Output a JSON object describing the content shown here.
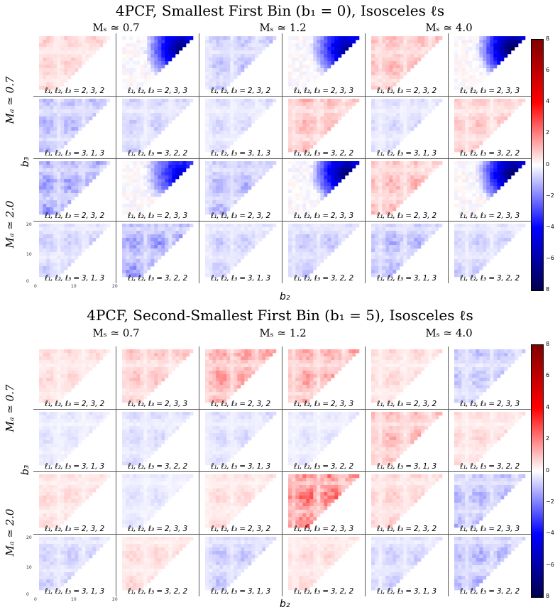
{
  "figures": [
    {
      "title": "4PCF, Smallest First Bin (b₁ = 0), Isosceles ℓs",
      "ms_labels": [
        "Mₛ ≃ 0.7",
        "Mₛ ≃ 1.2",
        "Mₛ ≃ 4.0"
      ],
      "ma_labels": [
        "Mₐ ≃ 0.7",
        "Mₐ ≃ 2.0"
      ],
      "xlabel": "b₂",
      "ylabel": "b₃",
      "panel_labels": [
        [
          "ℓ₁, ℓ₂, ℓ₃ = 2, 3, 2",
          "ℓ₁, ℓ₂, ℓ₃ = 2, 3, 3",
          "ℓ₁, ℓ₂, ℓ₃ = 2, 3, 2",
          "ℓ₁, ℓ₂, ℓ₃ = 2, 3, 3",
          "ℓ₁, ℓ₂, ℓ₃ = 2, 3, 2",
          "ℓ₁, ℓ₂, ℓ₃ = 2, 3, 3"
        ],
        [
          "ℓ₁, ℓ₂, ℓ₃ = 3, 1, 3",
          "ℓ₁, ℓ₂, ℓ₃ = 3, 2, 2",
          "ℓ₁, ℓ₂, ℓ₃ = 3, 1, 3",
          "ℓ₁, ℓ₂, ℓ₃ = 3, 2, 2",
          "ℓ₁, ℓ₂, ℓ₃ = 3, 1, 3",
          "ℓ₁, ℓ₂, ℓ₃ = 3, 2, 2"
        ],
        [
          "ℓ₁, ℓ₂, ℓ₃ = 2, 3, 2",
          "ℓ₁, ℓ₂, ℓ₃ = 2, 3, 3",
          "ℓ₁, ℓ₂, ℓ₃ = 2, 3, 2",
          "ℓ₁, ℓ₂, ℓ₃ = 2, 3, 3",
          "ℓ₁, ℓ₂, ℓ₃ = 2, 3, 2",
          "ℓ₁, ℓ₂, ℓ₃ = 2, 3, 3"
        ],
        [
          "ℓ₁, ℓ₂, ℓ₃ = 3, 1, 3",
          "ℓ₁, ℓ₂, ℓ₃ = 3, 2, 2",
          "ℓ₁, ℓ₂, ℓ₃ = 3, 1, 3",
          "ℓ₁, ℓ₂, ℓ₃ = 3, 2, 2",
          "ℓ₁, ℓ₂, ℓ₃ = 3, 1, 3",
          "ℓ₁, ℓ₂, ℓ₃ = 3, 2, 2"
        ]
      ],
      "axis_ticks": {
        "y": [
          "20",
          "10",
          "0"
        ],
        "x": [
          "0",
          "10",
          "20"
        ]
      },
      "colorbar_ticks": [
        "8",
        "6",
        "4",
        "2",
        "0",
        "−2",
        "−4",
        "−6",
        "8"
      ]
    },
    {
      "title": "4PCF, Second-Smallest First Bin (b₁ = 5), Isosceles ℓs",
      "ms_labels": [
        "Mₛ ≃ 0.7",
        "Mₛ ≃ 1.2",
        "Mₛ ≃ 4.0"
      ],
      "ma_labels": [
        "Mₐ ≃ 0.7",
        "Mₐ ≃ 2.0"
      ],
      "xlabel": "b₂",
      "ylabel": "b₃",
      "panel_labels": [
        [
          "ℓ₁, ℓ₂, ℓ₃ = 2, 3, 2",
          "ℓ₁, ℓ₂, ℓ₃ = 2, 3, 3",
          "ℓ₁, ℓ₂, ℓ₃ = 2, 3, 2",
          "ℓ₁, ℓ₂, ℓ₃ = 2, 3, 3",
          "ℓ₁, ℓ₂, ℓ₃ = 2, 3, 2",
          "ℓ₁, ℓ₂, ℓ₃ = 2, 3, 3"
        ],
        [
          "ℓ₁, ℓ₂, ℓ₃ = 3, 1, 3",
          "ℓ₁, ℓ₂, ℓ₃ = 3, 2, 2",
          "ℓ₁, ℓ₂, ℓ₃ = 3, 1, 3",
          "ℓ₁, ℓ₂, ℓ₃ = 3, 2, 2",
          "ℓ₁, ℓ₂, ℓ₃ = 3, 1, 3",
          "ℓ₁, ℓ₂, ℓ₃ = 3, 2, 2"
        ],
        [
          "ℓ₁, ℓ₂, ℓ₃ = 2, 3, 2",
          "ℓ₁, ℓ₂, ℓ₃ = 2, 3, 3",
          "ℓ₁, ℓ₂, ℓ₃ = 2, 3, 2",
          "ℓ₁, ℓ₂, ℓ₃ = 2, 3, 3",
          "ℓ₁, ℓ₂, ℓ₃ = 2, 3, 2",
          "ℓ₁, ℓ₂, ℓ₃ = 2, 3, 3"
        ],
        [
          "ℓ₁, ℓ₂, ℓ₃ = 3, 1, 3",
          "ℓ₁, ℓ₂, ℓ₃ = 3, 2, 2",
          "ℓ₁, ℓ₂, ℓ₃ = 3, 1, 3",
          "ℓ₁, ℓ₂, ℓ₃ = 3, 2, 2",
          "ℓ₁, ℓ₂, ℓ₃ = 3, 1, 3",
          "ℓ₁, ℓ₂, ℓ₃ = 3, 2, 2"
        ]
      ],
      "axis_ticks": {
        "y": [
          "20",
          "10",
          "0"
        ],
        "x": [
          "0",
          "10",
          "20"
        ]
      },
      "colorbar_ticks": [
        "8",
        "6",
        "4",
        "2",
        "0",
        "−2",
        "−4",
        "−6",
        "8"
      ]
    }
  ],
  "chart_data": [
    {
      "type": "heatmap",
      "title": "4PCF, Smallest First Bin (b₁ = 0), Isosceles ℓs",
      "xlabel": "b₂",
      "ylabel": "b₃",
      "xlim": [
        0,
        20
      ],
      "ylim": [
        0,
        20
      ],
      "color_range": [
        -8,
        8
      ],
      "colormap": "seismic",
      "columns": [
        "Mₛ ≃ 0.7",
        "Mₛ ≃ 1.2",
        "Mₛ ≃ 4.0"
      ],
      "rows": [
        "Mₐ ≃ 0.7",
        "Mₐ ≃ 2.0"
      ],
      "panel_peak_values": [
        [
          1.0,
          -7.0,
          -1.2,
          -6.5,
          1.5,
          -8.0
        ],
        [
          -1.5,
          -1.0,
          -0.8,
          1.5,
          -0.8,
          1.2
        ],
        [
          -2.0,
          -5.0,
          -1.5,
          -7.5,
          1.5,
          -7.5
        ],
        [
          -1.0,
          -2.0,
          -1.0,
          -1.2,
          -1.5,
          -1.0
        ]
      ]
    },
    {
      "type": "heatmap",
      "title": "4PCF, Second-Smallest First Bin (b₁ = 5), Isosceles ℓs",
      "xlabel": "b₂",
      "ylabel": "b₃",
      "xlim": [
        0,
        20
      ],
      "ylim": [
        0,
        20
      ],
      "color_range": [
        -8,
        8
      ],
      "colormap": "seismic",
      "columns": [
        "Mₛ ≃ 0.7",
        "Mₛ ≃ 1.2",
        "Mₛ ≃ 4.0"
      ],
      "rows": [
        "Mₐ ≃ 0.7",
        "Mₐ ≃ 2.0"
      ],
      "panel_peak_values": [
        [
          0.8,
          1.2,
          2.0,
          1.8,
          0.8,
          -1.2
        ],
        [
          -0.6,
          -0.8,
          -0.8,
          -0.6,
          1.5,
          0.8
        ],
        [
          0.8,
          -0.6,
          0.8,
          3.0,
          1.0,
          -1.5
        ],
        [
          -1.0,
          0.8,
          -1.2,
          0.8,
          -1.0,
          -1.5
        ]
      ]
    }
  ]
}
